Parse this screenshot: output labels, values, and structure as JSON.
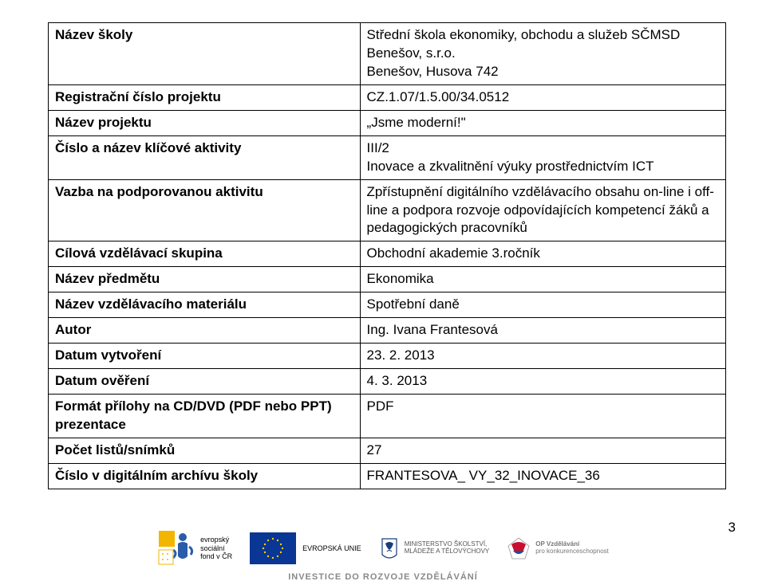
{
  "rows": [
    {
      "label": "Název školy",
      "value": "Střední škola ekonomiky, obchodu a služeb SČMSD Benešov, s.r.o.\nBenešov, Husova 742"
    },
    {
      "label": "Registrační číslo projektu",
      "value": "CZ.1.07/1.5.00/34.0512"
    },
    {
      "label": "Název projektu",
      "value": "„Jsme moderní!\""
    },
    {
      "label": "Číslo a název klíčové aktivity",
      "value": "III/2\nInovace a zkvalitnění výuky prostřednictvím ICT"
    },
    {
      "label": "Vazba na podporovanou aktivitu",
      "value": "Zpřístupnění digitálního vzdělávacího obsahu on-line i off-line a podpora rozvoje odpovídajících kompetencí žáků a pedagogických pracovníků"
    },
    {
      "label": "Cílová vzdělávací  skupina",
      "value": "Obchodní akademie 3.ročník"
    },
    {
      "label": "Název předmětu",
      "value": "Ekonomika"
    },
    {
      "label": "Název vzdělávacího materiálu",
      "value": "Spotřební daně"
    },
    {
      "label": "Autor",
      "value": "Ing. Ivana Frantesová"
    },
    {
      "label": "Datum vytvoření",
      "value": "23. 2. 2013"
    },
    {
      "label": "Datum ověření",
      "value": " 4. 3. 2013"
    },
    {
      "label": "Formát přílohy na CD/DVD (PDF nebo PPT) prezentace",
      "value": "PDF"
    },
    {
      "label": "Počet listů/snímků",
      "value": "27"
    },
    {
      "label": "Číslo v digitálním archívu školy",
      "value": "FRANTESOVA_ VY_32_INOVACE_36"
    }
  ],
  "footer": {
    "esf_lines": [
      "evropský",
      "sociální",
      "fond v ČR"
    ],
    "eu_lines": [
      "EVROPSKÁ UNIE"
    ],
    "msmt_lines": [
      "MINISTERSTVO ŠKOLSTVÍ,",
      "MLÁDEŽE A TĚLOVÝCHOVY"
    ],
    "opvk_lines": [
      "OP Vzdělávání",
      "pro konkurenceschopnost"
    ],
    "tagline": "INVESTICE DO ROZVOJE VZDĚLÁVÁNÍ"
  },
  "page_number": "3",
  "colors": {
    "eu_blue": "#0a3694",
    "eu_gold": "#ffcc00",
    "esf_yellow": "#f2b600",
    "esf_blue": "#2a5ca8",
    "opvk_red": "#c8102e",
    "opvk_blue": "#1b4f9c",
    "msmt_blue": "#1a3d7c"
  }
}
